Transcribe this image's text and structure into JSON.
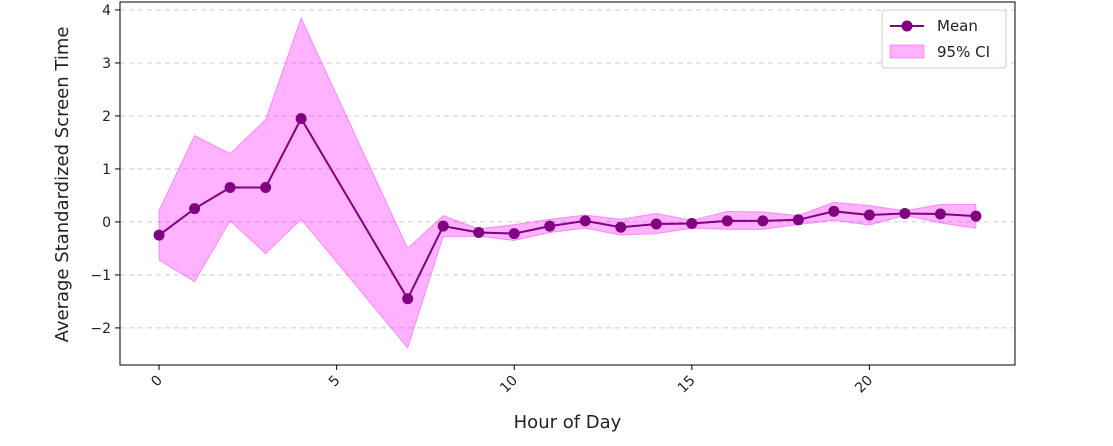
{
  "chart_data": {
    "type": "line",
    "title": "",
    "xlabel": "Hour of Day",
    "ylabel": "Average Standardized Screen Time",
    "xlim": [
      -1.1,
      24.1
    ],
    "ylim": [
      -2.7,
      4.15
    ],
    "xticks": [
      0,
      5,
      10,
      15,
      20
    ],
    "yticks": [
      -2,
      -1,
      0,
      1,
      2,
      3,
      4
    ],
    "xtick_labels": [
      "0",
      "5",
      "10",
      "15",
      "20"
    ],
    "ytick_labels": [
      "−2",
      "−1",
      "0",
      "1",
      "2",
      "3",
      "4"
    ],
    "grid": "y-dashed",
    "legend_position": "top-right",
    "series": [
      {
        "name": "Mean",
        "color": "#800080",
        "x": [
          0,
          1,
          2,
          3,
          4,
          7,
          8,
          9,
          10,
          11,
          12,
          13,
          14,
          15,
          16,
          17,
          18,
          19,
          20,
          21,
          22,
          23
        ],
        "values": [
          -0.25,
          0.25,
          0.65,
          0.65,
          1.95,
          -1.45,
          -0.08,
          -0.2,
          -0.22,
          -0.08,
          0.02,
          -0.1,
          -0.04,
          -0.03,
          0.02,
          0.02,
          0.04,
          0.2,
          0.13,
          0.16,
          0.15,
          0.11
        ]
      }
    ],
    "ci": {
      "name": "95% CI",
      "color": "#ff00ff",
      "x": [
        0,
        1,
        2,
        3,
        4,
        7,
        8,
        9,
        10,
        11,
        12,
        13,
        14,
        15,
        16,
        17,
        18,
        19,
        20,
        21,
        22,
        23
      ],
      "lower": [
        -0.72,
        -1.13,
        0.02,
        -0.6,
        0.05,
        -2.38,
        -0.28,
        -0.27,
        -0.35,
        -0.2,
        -0.12,
        -0.25,
        -0.22,
        -0.12,
        -0.14,
        -0.14,
        -0.05,
        0.03,
        -0.06,
        0.12,
        -0.02,
        -0.12
      ],
      "upper": [
        0.22,
        1.63,
        1.29,
        1.93,
        3.85,
        -0.5,
        0.12,
        -0.13,
        -0.05,
        0.05,
        0.13,
        0.05,
        0.16,
        0.03,
        0.2,
        0.19,
        0.12,
        0.37,
        0.31,
        0.21,
        0.33,
        0.33
      ]
    }
  }
}
